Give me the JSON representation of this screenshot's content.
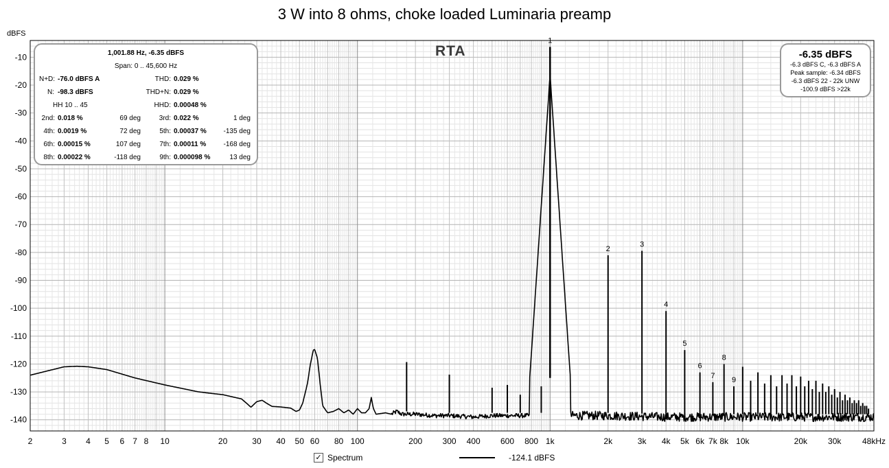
{
  "title": "3 W into 8 ohms, choke loaded Luminaria preamp",
  "ylabel": "dBFS",
  "watermark": "RTA",
  "stats": {
    "line1": "1,001.88 Hz, -6.35 dBFS",
    "line2": "Span: 0 .. 45,600 Hz",
    "nd_label": "N+D:",
    "nd_value": "-76.0 dBFS A",
    "thd_label": "THD:",
    "thd_value": "0.029 %",
    "n_label": "N:",
    "n_value": "-98.3 dBFS",
    "thdn_label": "THD+N:",
    "thdn_value": "0.029 %",
    "hh_label": "HH 10 .. 45",
    "hhd_label": "HHD:",
    "hhd_value": "0.00048 %",
    "harmonics": [
      {
        "label": "2nd:",
        "value": "0.018 %",
        "phase": "69 deg"
      },
      {
        "label": "3rd:",
        "value": "0.022 %",
        "phase": "1 deg"
      },
      {
        "label": "4th:",
        "value": "0.0019 %",
        "phase": "72 deg"
      },
      {
        "label": "5th:",
        "value": "0.00037 %",
        "phase": "-135 deg"
      },
      {
        "label": "6th:",
        "value": "0.00015 %",
        "phase": "107 deg"
      },
      {
        "label": "7th:",
        "value": "0.00011 %",
        "phase": "-168 deg"
      },
      {
        "label": "8th:",
        "value": "0.00022 %",
        "phase": "-118 deg"
      },
      {
        "label": "9th:",
        "value": "0.000098 %",
        "phase": "13 deg"
      }
    ]
  },
  "level": {
    "main": "-6.35 dBFS",
    "l1": "-6.3 dBFS C, -6.3 dBFS A",
    "l2": "Peak sample: -6.34 dBFS",
    "l3": "-6.3 dBFS 22 - 22k UNW",
    "l4": "-100.9 dBFS >22k"
  },
  "legend": {
    "checkbox": "✓",
    "label": "Spectrum",
    "value": "-124.1 dBFS"
  },
  "chart_data": {
    "type": "line",
    "xscale": "log",
    "xlim": [
      2,
      48000
    ],
    "ylim": [
      -144,
      -4
    ],
    "grid": true,
    "y_ticks": [
      -10,
      -20,
      -30,
      -40,
      -50,
      -60,
      -70,
      -80,
      -90,
      -100,
      -110,
      -120,
      -130,
      -140
    ],
    "x_ticks": [
      {
        "v": 2,
        "l": "2"
      },
      {
        "v": 3,
        "l": "3"
      },
      {
        "v": 4,
        "l": "4"
      },
      {
        "v": 5,
        "l": "5"
      },
      {
        "v": 6,
        "l": "6"
      },
      {
        "v": 7,
        "l": "7"
      },
      {
        "v": 8,
        "l": "8"
      },
      {
        "v": 10,
        "l": "10"
      },
      {
        "v": 20,
        "l": "20"
      },
      {
        "v": 30,
        "l": "30"
      },
      {
        "v": 40,
        "l": "40"
      },
      {
        "v": 50,
        "l": "50"
      },
      {
        "v": 60,
        "l": "60"
      },
      {
        "v": 80,
        "l": "80"
      },
      {
        "v": 100,
        "l": "100"
      },
      {
        "v": 200,
        "l": "200"
      },
      {
        "v": 300,
        "l": "300"
      },
      {
        "v": 400,
        "l": "400"
      },
      {
        "v": 600,
        "l": "600"
      },
      {
        "v": 800,
        "l": "800"
      },
      {
        "v": 1000,
        "l": "1k"
      },
      {
        "v": 2000,
        "l": "2k"
      },
      {
        "v": 3000,
        "l": "3k"
      },
      {
        "v": 4000,
        "l": "4k"
      },
      {
        "v": 5000,
        "l": "5k"
      },
      {
        "v": 6000,
        "l": "6k"
      },
      {
        "v": 7000,
        "l": "7k"
      },
      {
        "v": 8000,
        "l": "8k"
      },
      {
        "v": 10000,
        "l": "10k"
      },
      {
        "v": 20000,
        "l": "20k"
      },
      {
        "v": 30000,
        "l": "30k"
      },
      {
        "v": 48000,
        "l": "48kHz"
      }
    ],
    "harmonic_labels": [
      {
        "n": "1",
        "f": 1000,
        "db": -6.3
      },
      {
        "n": "2",
        "f": 2000,
        "db": -81
      },
      {
        "n": "3",
        "f": 3000,
        "db": -79.4
      },
      {
        "n": "4",
        "f": 4000,
        "db": -101
      },
      {
        "n": "5",
        "f": 5000,
        "db": -115
      },
      {
        "n": "6",
        "f": 6000,
        "db": -123
      },
      {
        "n": "7",
        "f": 7000,
        "db": -126.5
      },
      {
        "n": "8",
        "f": 8000,
        "db": -120
      },
      {
        "n": "9",
        "f": 9000,
        "db": -128
      }
    ],
    "series": [
      {
        "floor": [
          [
            2,
            -124
          ],
          [
            3,
            -121
          ],
          [
            3.5,
            -120.8
          ],
          [
            4,
            -121
          ],
          [
            5,
            -122
          ],
          [
            7,
            -125
          ],
          [
            10,
            -127.5
          ],
          [
            15,
            -130
          ],
          [
            20,
            -131
          ],
          [
            25,
            -132.5
          ],
          [
            27,
            -134.5
          ],
          [
            28,
            -135.5
          ],
          [
            30,
            -133.5
          ],
          [
            32,
            -133
          ],
          [
            34,
            -134.2
          ],
          [
            36,
            -135.2
          ],
          [
            40,
            -135.4
          ],
          [
            45,
            -135.8
          ],
          [
            48,
            -137
          ],
          [
            50,
            -136.5
          ],
          [
            52,
            -134
          ],
          [
            55,
            -127
          ],
          [
            57,
            -120
          ],
          [
            59,
            -115
          ],
          [
            60,
            -114.8
          ],
          [
            62,
            -118
          ],
          [
            64,
            -127
          ],
          [
            66,
            -135
          ],
          [
            70,
            -137.5
          ],
          [
            75,
            -137
          ],
          [
            80,
            -136
          ],
          [
            85,
            -137.5
          ],
          [
            90,
            -136.5
          ],
          [
            95,
            -138
          ],
          [
            100,
            -136
          ],
          [
            105,
            -137.5
          ],
          [
            110,
            -137.5
          ],
          [
            115,
            -136
          ],
          [
            118,
            -132
          ],
          [
            121,
            -136
          ],
          [
            125,
            -138
          ],
          [
            140,
            -137.5
          ],
          [
            150,
            -138
          ],
          [
            160,
            -137
          ],
          [
            170,
            -138
          ],
          [
            180,
            -138
          ],
          [
            200,
            -138
          ],
          [
            250,
            -138.5
          ],
          [
            300,
            -138.5
          ],
          [
            400,
            -139
          ],
          [
            500,
            -138.5
          ],
          [
            600,
            -138.5
          ],
          [
            700,
            -138.5
          ],
          [
            800,
            -138.5
          ],
          [
            1000,
            -138.5
          ],
          [
            2000,
            -138.5
          ],
          [
            4000,
            -139
          ],
          [
            8000,
            -139
          ],
          [
            15000,
            -139
          ],
          [
            30000,
            -139
          ],
          [
            48000,
            -139
          ]
        ],
        "spikes": [
          {
            "f": 180,
            "db": -119.3
          },
          {
            "f": 300,
            "db": -123.8
          },
          {
            "f": 500,
            "db": -128.5
          },
          {
            "f": 600,
            "db": -127.5
          },
          {
            "f": 700,
            "db": -131
          },
          {
            "f": 900,
            "db": -128
          },
          {
            "f": 2000,
            "db": -81
          },
          {
            "f": 3000,
            "db": -79.4
          },
          {
            "f": 4000,
            "db": -101
          },
          {
            "f": 5000,
            "db": -115
          },
          {
            "f": 6000,
            "db": -123
          },
          {
            "f": 7000,
            "db": -126.5
          },
          {
            "f": 8000,
            "db": -120
          },
          {
            "f": 9000,
            "db": -128
          },
          {
            "f": 10000,
            "db": -121
          },
          {
            "f": 11000,
            "db": -126
          },
          {
            "f": 12000,
            "db": -123
          },
          {
            "f": 13000,
            "db": -127
          },
          {
            "f": 14000,
            "db": -124
          },
          {
            "f": 15000,
            "db": -128
          },
          {
            "f": 16000,
            "db": -124
          },
          {
            "f": 17000,
            "db": -127
          },
          {
            "f": 18000,
            "db": -124
          },
          {
            "f": 19000,
            "db": -128
          },
          {
            "f": 20000,
            "db": -124.5
          },
          {
            "f": 21000,
            "db": -128
          },
          {
            "f": 22000,
            "db": -126
          },
          {
            "f": 23000,
            "db": -129
          },
          {
            "f": 24000,
            "db": -126
          },
          {
            "f": 25000,
            "db": -130
          },
          {
            "f": 26000,
            "db": -127
          },
          {
            "f": 27000,
            "db": -130
          },
          {
            "f": 28000,
            "db": -128
          },
          {
            "f": 29000,
            "db": -131
          },
          {
            "f": 30000,
            "db": -129
          },
          {
            "f": 31000,
            "db": -132
          },
          {
            "f": 32000,
            "db": -130
          },
          {
            "f": 33000,
            "db": -133
          },
          {
            "f": 34000,
            "db": -131
          },
          {
            "f": 35000,
            "db": -133
          },
          {
            "f": 36000,
            "db": -132
          },
          {
            "f": 37000,
            "db": -134
          },
          {
            "f": 38000,
            "db": -133
          },
          {
            "f": 39000,
            "db": -134
          },
          {
            "f": 40000,
            "db": -133
          },
          {
            "f": 41000,
            "db": -135
          },
          {
            "f": 42000,
            "db": -134
          },
          {
            "f": 43000,
            "db": -135
          },
          {
            "f": 44000,
            "db": -135
          },
          {
            "f": 45000,
            "db": -136
          }
        ],
        "fundamental": {
          "f": 1000,
          "db": -6.3
        }
      }
    ]
  }
}
